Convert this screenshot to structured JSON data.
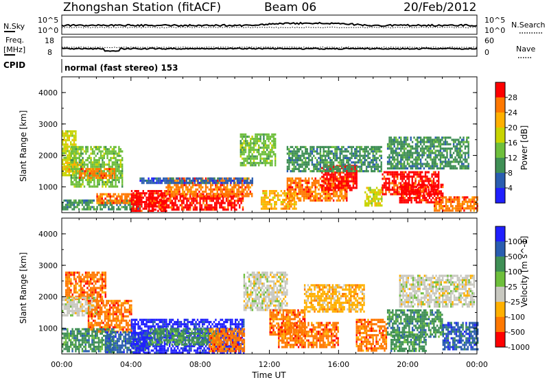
{
  "header": {
    "station": "Zhongshan Station (fitACF)",
    "beam": "Beam 06",
    "date": "20/Feb/2012",
    "cpid_label": "CPID",
    "cpid_text": "normal (fast stereo) 153"
  },
  "summary_panels": {
    "nsky_label": "N.Sky",
    "nsky_ticks": [
      "10^5",
      "10^0"
    ],
    "nsearch_label": "N.Search",
    "nsearch_ticks": [
      "10^5",
      "10^0"
    ],
    "freq_label_1": "Freq.",
    "freq_label_2": "[MHz]",
    "freq_ticks": [
      "18",
      "8"
    ],
    "nave_label": "Nave",
    "nave_ticks": [
      "60",
      "0"
    ]
  },
  "chart_data": [
    {
      "type": "heatmap",
      "name": "power",
      "xlabel": "",
      "ylabel": "Slant Range [km]",
      "x_range_ut_hours": [
        0,
        24
      ],
      "y_range_km": [
        180,
        4500
      ],
      "y_ticks": [
        "1000",
        "2000",
        "3000",
        "4000"
      ],
      "colorbar_label": "Power [dB]",
      "colorbar_ticks": [
        "4",
        "8",
        "12",
        "16",
        "20",
        "24",
        "28"
      ],
      "colorbar_colors": [
        "#2020ff",
        "#2a5db0",
        "#3f8f55",
        "#6ebf3c",
        "#c8d400",
        "#ffb000",
        "#ff7800",
        "#ff0000"
      ],
      "regions": [
        {
          "t0": 0.0,
          "t1": 0.8,
          "r0": 1400,
          "r1": 2800,
          "level": 4
        },
        {
          "t0": 0.0,
          "t1": 1.2,
          "r0": 1500,
          "r1": 1800,
          "level": 5
        },
        {
          "t0": 0.5,
          "t1": 3.5,
          "r0": 1000,
          "r1": 2300,
          "level": 3
        },
        {
          "t0": 1.0,
          "t1": 3.0,
          "r0": 1300,
          "r1": 1600,
          "level": 6
        },
        {
          "t0": 0.0,
          "t1": 4.5,
          "r0": 300,
          "r1": 600,
          "level": 2
        },
        {
          "t0": 2.0,
          "t1": 4.5,
          "r0": 500,
          "r1": 800,
          "level": 6
        },
        {
          "t0": 4.0,
          "t1": 6.0,
          "r0": 250,
          "r1": 900,
          "level": 7
        },
        {
          "t0": 5.0,
          "t1": 10.5,
          "r0": 250,
          "r1": 800,
          "level": 7
        },
        {
          "t0": 6.0,
          "t1": 11.0,
          "r0": 700,
          "r1": 1300,
          "level": 6
        },
        {
          "t0": 4.5,
          "t1": 11.0,
          "r0": 1100,
          "r1": 1300,
          "level": 1
        },
        {
          "t0": 10.3,
          "t1": 12.3,
          "r0": 1700,
          "r1": 2700,
          "level": 3
        },
        {
          "t0": 11.5,
          "t1": 13.5,
          "r0": 300,
          "r1": 900,
          "level": 5
        },
        {
          "t0": 13.0,
          "t1": 16.5,
          "r0": 600,
          "r1": 1300,
          "level": 6
        },
        {
          "t0": 15.0,
          "t1": 17.0,
          "r0": 900,
          "r1": 1700,
          "level": 7
        },
        {
          "t0": 13.0,
          "t1": 18.5,
          "r0": 1500,
          "r1": 2300,
          "level": 2
        },
        {
          "t0": 17.5,
          "t1": 18.5,
          "r0": 400,
          "r1": 1000,
          "level": 4
        },
        {
          "t0": 18.5,
          "t1": 21.8,
          "r0": 800,
          "r1": 1500,
          "level": 7
        },
        {
          "t0": 19.5,
          "t1": 22.0,
          "r0": 500,
          "r1": 1100,
          "level": 7
        },
        {
          "t0": 18.8,
          "t1": 23.5,
          "r0": 1600,
          "r1": 2600,
          "level": 2
        },
        {
          "t0": 21.5,
          "t1": 24.0,
          "r0": 250,
          "r1": 700,
          "level": 6
        }
      ]
    },
    {
      "type": "heatmap",
      "name": "velocity",
      "xlabel": "Time UT",
      "ylabel": "Slant Range [km]",
      "x_range_ut_hours": [
        0,
        24
      ],
      "x_ticks": [
        "00:00",
        "04:00",
        "08:00",
        "12:00",
        "16:00",
        "20:00",
        "00:00"
      ],
      "y_range_km": [
        180,
        4500
      ],
      "y_ticks": [
        "1000",
        "2000",
        "3000",
        "4000"
      ],
      "colorbar_label": "Velocity [m s^-1]",
      "colorbar_ticks": [
        "1000",
        "500",
        "100",
        "25",
        "-25",
        "-100",
        "-500",
        "-1000"
      ],
      "colorbar_colors": [
        "#2020ff",
        "#2a5db0",
        "#3f8f55",
        "#6ebf3c",
        "#c8c8c0",
        "#ffb000",
        "#ff7800",
        "#ff0000"
      ],
      "regions": [
        {
          "t0": 0.2,
          "t1": 2.5,
          "r0": 1900,
          "r1": 2800,
          "level": 6
        },
        {
          "t0": 0.0,
          "t1": 2.0,
          "r0": 1400,
          "r1": 2000,
          "level": 4
        },
        {
          "t0": 1.5,
          "t1": 4.0,
          "r0": 900,
          "r1": 1900,
          "level": 6
        },
        {
          "t0": 0.0,
          "t1": 3.0,
          "r0": 250,
          "r1": 1000,
          "level": 2
        },
        {
          "t0": 2.5,
          "t1": 5.0,
          "r0": 250,
          "r1": 900,
          "level": 1
        },
        {
          "t0": 4.0,
          "t1": 10.5,
          "r0": 250,
          "r1": 1300,
          "level": 0
        },
        {
          "t0": 5.0,
          "t1": 9.0,
          "r0": 500,
          "r1": 1000,
          "level": 2
        },
        {
          "t0": 8.5,
          "t1": 10.5,
          "r0": 300,
          "r1": 1000,
          "level": 6
        },
        {
          "t0": 10.5,
          "t1": 13.0,
          "r0": 1600,
          "r1": 2800,
          "level": 4
        },
        {
          "t0": 12.0,
          "t1": 14.0,
          "r0": 800,
          "r1": 1600,
          "level": 6
        },
        {
          "t0": 12.5,
          "t1": 16.0,
          "r0": 400,
          "r1": 1200,
          "level": 6
        },
        {
          "t0": 14.0,
          "t1": 17.5,
          "r0": 1500,
          "r1": 2400,
          "level": 5
        },
        {
          "t0": 17.0,
          "t1": 18.8,
          "r0": 300,
          "r1": 1300,
          "level": 6
        },
        {
          "t0": 18.8,
          "t1": 22.0,
          "r0": 700,
          "r1": 1600,
          "level": 2
        },
        {
          "t0": 19.0,
          "t1": 21.0,
          "r0": 300,
          "r1": 800,
          "level": 2
        },
        {
          "t0": 19.5,
          "t1": 23.8,
          "r0": 1700,
          "r1": 2700,
          "level": 4
        },
        {
          "t0": 22.0,
          "t1": 24.0,
          "r0": 300,
          "r1": 1200,
          "level": 1
        }
      ]
    }
  ]
}
